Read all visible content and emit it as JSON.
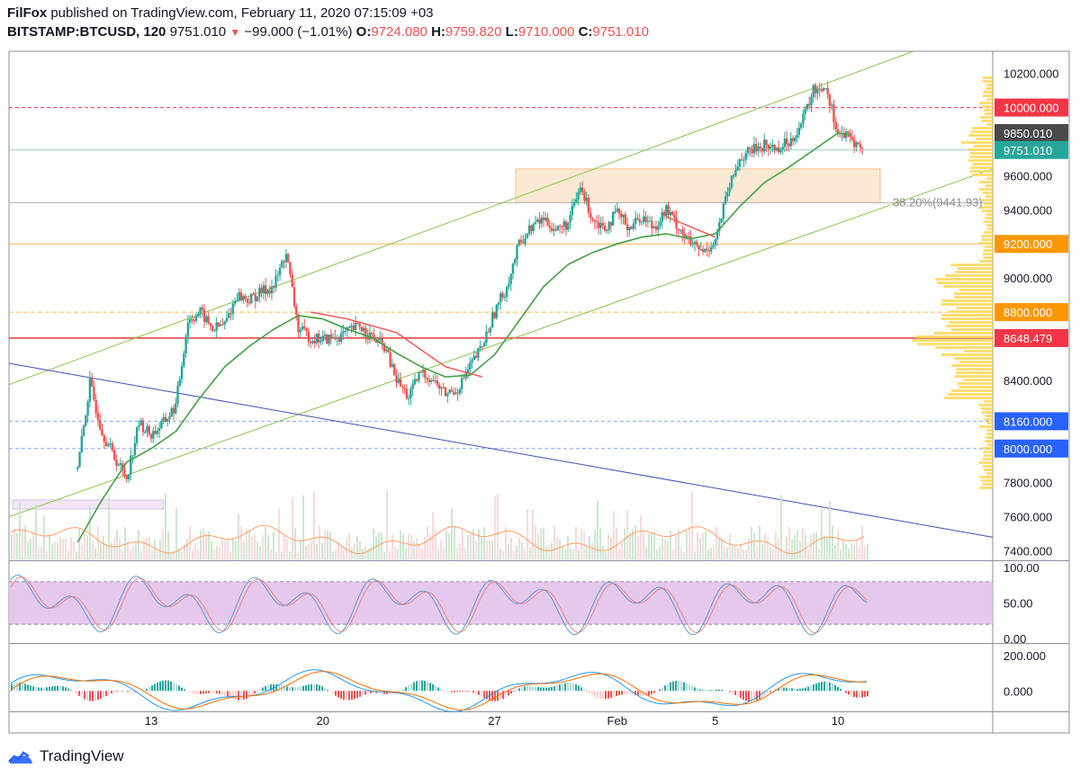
{
  "header": {
    "author": "FilFox",
    "published_text": "published on TradingView.com, February 11, 2020 07:15:09 +03",
    "symbol": "BITSTAMP:BTCUSD, 120",
    "last": "9751.010",
    "change": "−99.000 (−1.01%)",
    "o_label": "O:",
    "o_value": "9724.080",
    "h_label": "H:",
    "h_value": "9759.820",
    "l_label": "L:",
    "l_value": "9710.000",
    "c_label": "C:",
    "c_value": "9751.010"
  },
  "footer": {
    "brand": "TradingView"
  },
  "colors": {
    "up": "#26a69a",
    "down": "#ef5350",
    "ma": "#4caf50",
    "channel": "#8bc34a",
    "trend": "#3f51b5",
    "zone": "#fbe9d4",
    "stoch_band": "#e1bee7"
  },
  "chart_data": [
    {
      "type": "candlestick",
      "title": "",
      "x_tick_labels": [
        "13",
        "20",
        "27",
        "Feb",
        "5",
        "10"
      ],
      "x_tick_dates": [
        "2020-01-13",
        "2020-01-20",
        "2020-01-27",
        "2020-02-01",
        "2020-02-05",
        "2020-02-10"
      ],
      "y_tick_labels": [
        "10200.000",
        "9600.000",
        "9400.000",
        "9000.000",
        "8800.000",
        "8400.000",
        "7800.000",
        "7600.000",
        "7400.000"
      ],
      "ylim": [
        7350,
        10330
      ],
      "price_tags": [
        {
          "label": "10000.000",
          "value": 10000,
          "color": "#f23645"
        },
        {
          "label": "9850.010",
          "value": 9850,
          "color": "#4a4a4a"
        },
        {
          "label": "9751.010",
          "value": 9751,
          "color": "#26a69a"
        },
        {
          "label": "9200.000",
          "value": 9200,
          "color": "#ff9800"
        },
        {
          "label": "8800.000",
          "value": 8800,
          "color": "#ff9800"
        },
        {
          "label": "8648.479",
          "value": 8648,
          "color": "#f23645"
        },
        {
          "label": "8160.000",
          "value": 8160,
          "color": "#2962ff"
        },
        {
          "label": "8000.000",
          "value": 8000,
          "color": "#2962ff"
        }
      ],
      "fib_label": "38.20%(9441.93)",
      "fib_value": 9442,
      "zone": [
        9442,
        9640
      ],
      "close_path": [
        {
          "x": "2020-01-10",
          "y": 7880
        },
        {
          "x": "2020-01-10T12",
          "y": 8380
        },
        {
          "x": "2020-01-11",
          "y": 8100
        },
        {
          "x": "2020-01-11T12",
          "y": 7950
        },
        {
          "x": "2020-01-12",
          "y": 7830
        },
        {
          "x": "2020-01-12T12",
          "y": 8150
        },
        {
          "x": "2020-01-13",
          "y": 8080
        },
        {
          "x": "2020-01-13T12",
          "y": 8150
        },
        {
          "x": "2020-01-14",
          "y": 8250
        },
        {
          "x": "2020-01-14T12",
          "y": 8750
        },
        {
          "x": "2020-01-15",
          "y": 8800
        },
        {
          "x": "2020-01-15T12",
          "y": 8700
        },
        {
          "x": "2020-01-16",
          "y": 8730
        },
        {
          "x": "2020-01-16T12",
          "y": 8900
        },
        {
          "x": "2020-01-17",
          "y": 8870
        },
        {
          "x": "2020-01-17T12",
          "y": 8920
        },
        {
          "x": "2020-01-18",
          "y": 8950
        },
        {
          "x": "2020-01-18T12",
          "y": 9150
        },
        {
          "x": "2020-01-19",
          "y": 8700
        },
        {
          "x": "2020-01-19T12",
          "y": 8650
        },
        {
          "x": "2020-01-20",
          "y": 8640
        },
        {
          "x": "2020-01-20T12",
          "y": 8650
        },
        {
          "x": "2020-01-21",
          "y": 8680
        },
        {
          "x": "2020-01-21T12",
          "y": 8720
        },
        {
          "x": "2020-01-22",
          "y": 8650
        },
        {
          "x": "2020-01-22T12",
          "y": 8600
        },
        {
          "x": "2020-01-23",
          "y": 8400
        },
        {
          "x": "2020-01-23T12",
          "y": 8300
        },
        {
          "x": "2020-01-24",
          "y": 8450
        },
        {
          "x": "2020-01-24T12",
          "y": 8400
        },
        {
          "x": "2020-01-25",
          "y": 8320
        },
        {
          "x": "2020-01-25T12",
          "y": 8350
        },
        {
          "x": "2020-01-26",
          "y": 8480
        },
        {
          "x": "2020-01-26T12",
          "y": 8600
        },
        {
          "x": "2020-01-27",
          "y": 8800
        },
        {
          "x": "2020-01-27T12",
          "y": 8950
        },
        {
          "x": "2020-01-28",
          "y": 9200
        },
        {
          "x": "2020-01-28T12",
          "y": 9300
        },
        {
          "x": "2020-01-29",
          "y": 9350
        },
        {
          "x": "2020-01-29T12",
          "y": 9280
        },
        {
          "x": "2020-01-30",
          "y": 9320
        },
        {
          "x": "2020-01-30T12",
          "y": 9530
        },
        {
          "x": "2020-01-31",
          "y": 9350
        },
        {
          "x": "2020-01-31T12",
          "y": 9300
        },
        {
          "x": "2020-02-01",
          "y": 9380
        },
        {
          "x": "2020-02-01T12",
          "y": 9300
        },
        {
          "x": "2020-02-02",
          "y": 9360
        },
        {
          "x": "2020-02-02T12",
          "y": 9300
        },
        {
          "x": "2020-02-03",
          "y": 9400
        },
        {
          "x": "2020-02-03T12",
          "y": 9300
        },
        {
          "x": "2020-02-04",
          "y": 9200
        },
        {
          "x": "2020-02-04T12",
          "y": 9150
        },
        {
          "x": "2020-02-05",
          "y": 9220
        },
        {
          "x": "2020-02-05T12",
          "y": 9500
        },
        {
          "x": "2020-02-06",
          "y": 9700
        },
        {
          "x": "2020-02-06T12",
          "y": 9750
        },
        {
          "x": "2020-02-07",
          "y": 9780
        },
        {
          "x": "2020-02-07T12",
          "y": 9760
        },
        {
          "x": "2020-02-08",
          "y": 9800
        },
        {
          "x": "2020-02-08T12",
          "y": 9900
        },
        {
          "x": "2020-02-09",
          "y": 10100
        },
        {
          "x": "2020-02-09T12",
          "y": 10130
        },
        {
          "x": "2020-02-10",
          "y": 9850
        },
        {
          "x": "2020-02-10T12",
          "y": 9820
        },
        {
          "x": "2020-02-11",
          "y": 9751
        }
      ],
      "ma_path": [
        {
          "x": "2020-01-10",
          "y": 7450
        },
        {
          "x": "2020-01-11",
          "y": 7700
        },
        {
          "x": "2020-01-12",
          "y": 7920
        },
        {
          "x": "2020-01-13",
          "y": 8000
        },
        {
          "x": "2020-01-14",
          "y": 8100
        },
        {
          "x": "2020-01-15",
          "y": 8300
        },
        {
          "x": "2020-01-16",
          "y": 8480
        },
        {
          "x": "2020-01-17",
          "y": 8600
        },
        {
          "x": "2020-01-18",
          "y": 8700
        },
        {
          "x": "2020-01-19",
          "y": 8780
        },
        {
          "x": "2020-01-20",
          "y": 8760
        },
        {
          "x": "2020-01-21",
          "y": 8700
        },
        {
          "x": "2020-01-22",
          "y": 8650
        },
        {
          "x": "2020-01-23",
          "y": 8560
        },
        {
          "x": "2020-01-24",
          "y": 8480
        },
        {
          "x": "2020-01-25",
          "y": 8420
        },
        {
          "x": "2020-01-26",
          "y": 8430
        },
        {
          "x": "2020-01-27",
          "y": 8550
        },
        {
          "x": "2020-01-28",
          "y": 8750
        },
        {
          "x": "2020-01-29",
          "y": 8950
        },
        {
          "x": "2020-01-30",
          "y": 9080
        },
        {
          "x": "2020-01-31",
          "y": 9150
        },
        {
          "x": "2020-02-01",
          "y": 9200
        },
        {
          "x": "2020-02-02",
          "y": 9240
        },
        {
          "x": "2020-02-03",
          "y": 9260
        },
        {
          "x": "2020-02-04",
          "y": 9230
        },
        {
          "x": "2020-02-05",
          "y": 9260
        },
        {
          "x": "2020-02-06",
          "y": 9420
        },
        {
          "x": "2020-02-07",
          "y": 9560
        },
        {
          "x": "2020-02-08",
          "y": 9650
        },
        {
          "x": "2020-02-09",
          "y": 9750
        },
        {
          "x": "2020-02-10",
          "y": 9850
        },
        {
          "x": "2020-02-10T12",
          "y": 9840
        }
      ]
    },
    {
      "type": "line",
      "title": "",
      "y_tick_labels": [
        "100.00",
        "50.00",
        "0.00"
      ],
      "ylim": [
        0,
        100
      ],
      "bands": [
        20,
        80
      ]
    },
    {
      "type": "line",
      "title": "",
      "y_tick_labels": [
        "200.000",
        "0.000"
      ],
      "ylim": [
        -80,
        240
      ]
    }
  ]
}
